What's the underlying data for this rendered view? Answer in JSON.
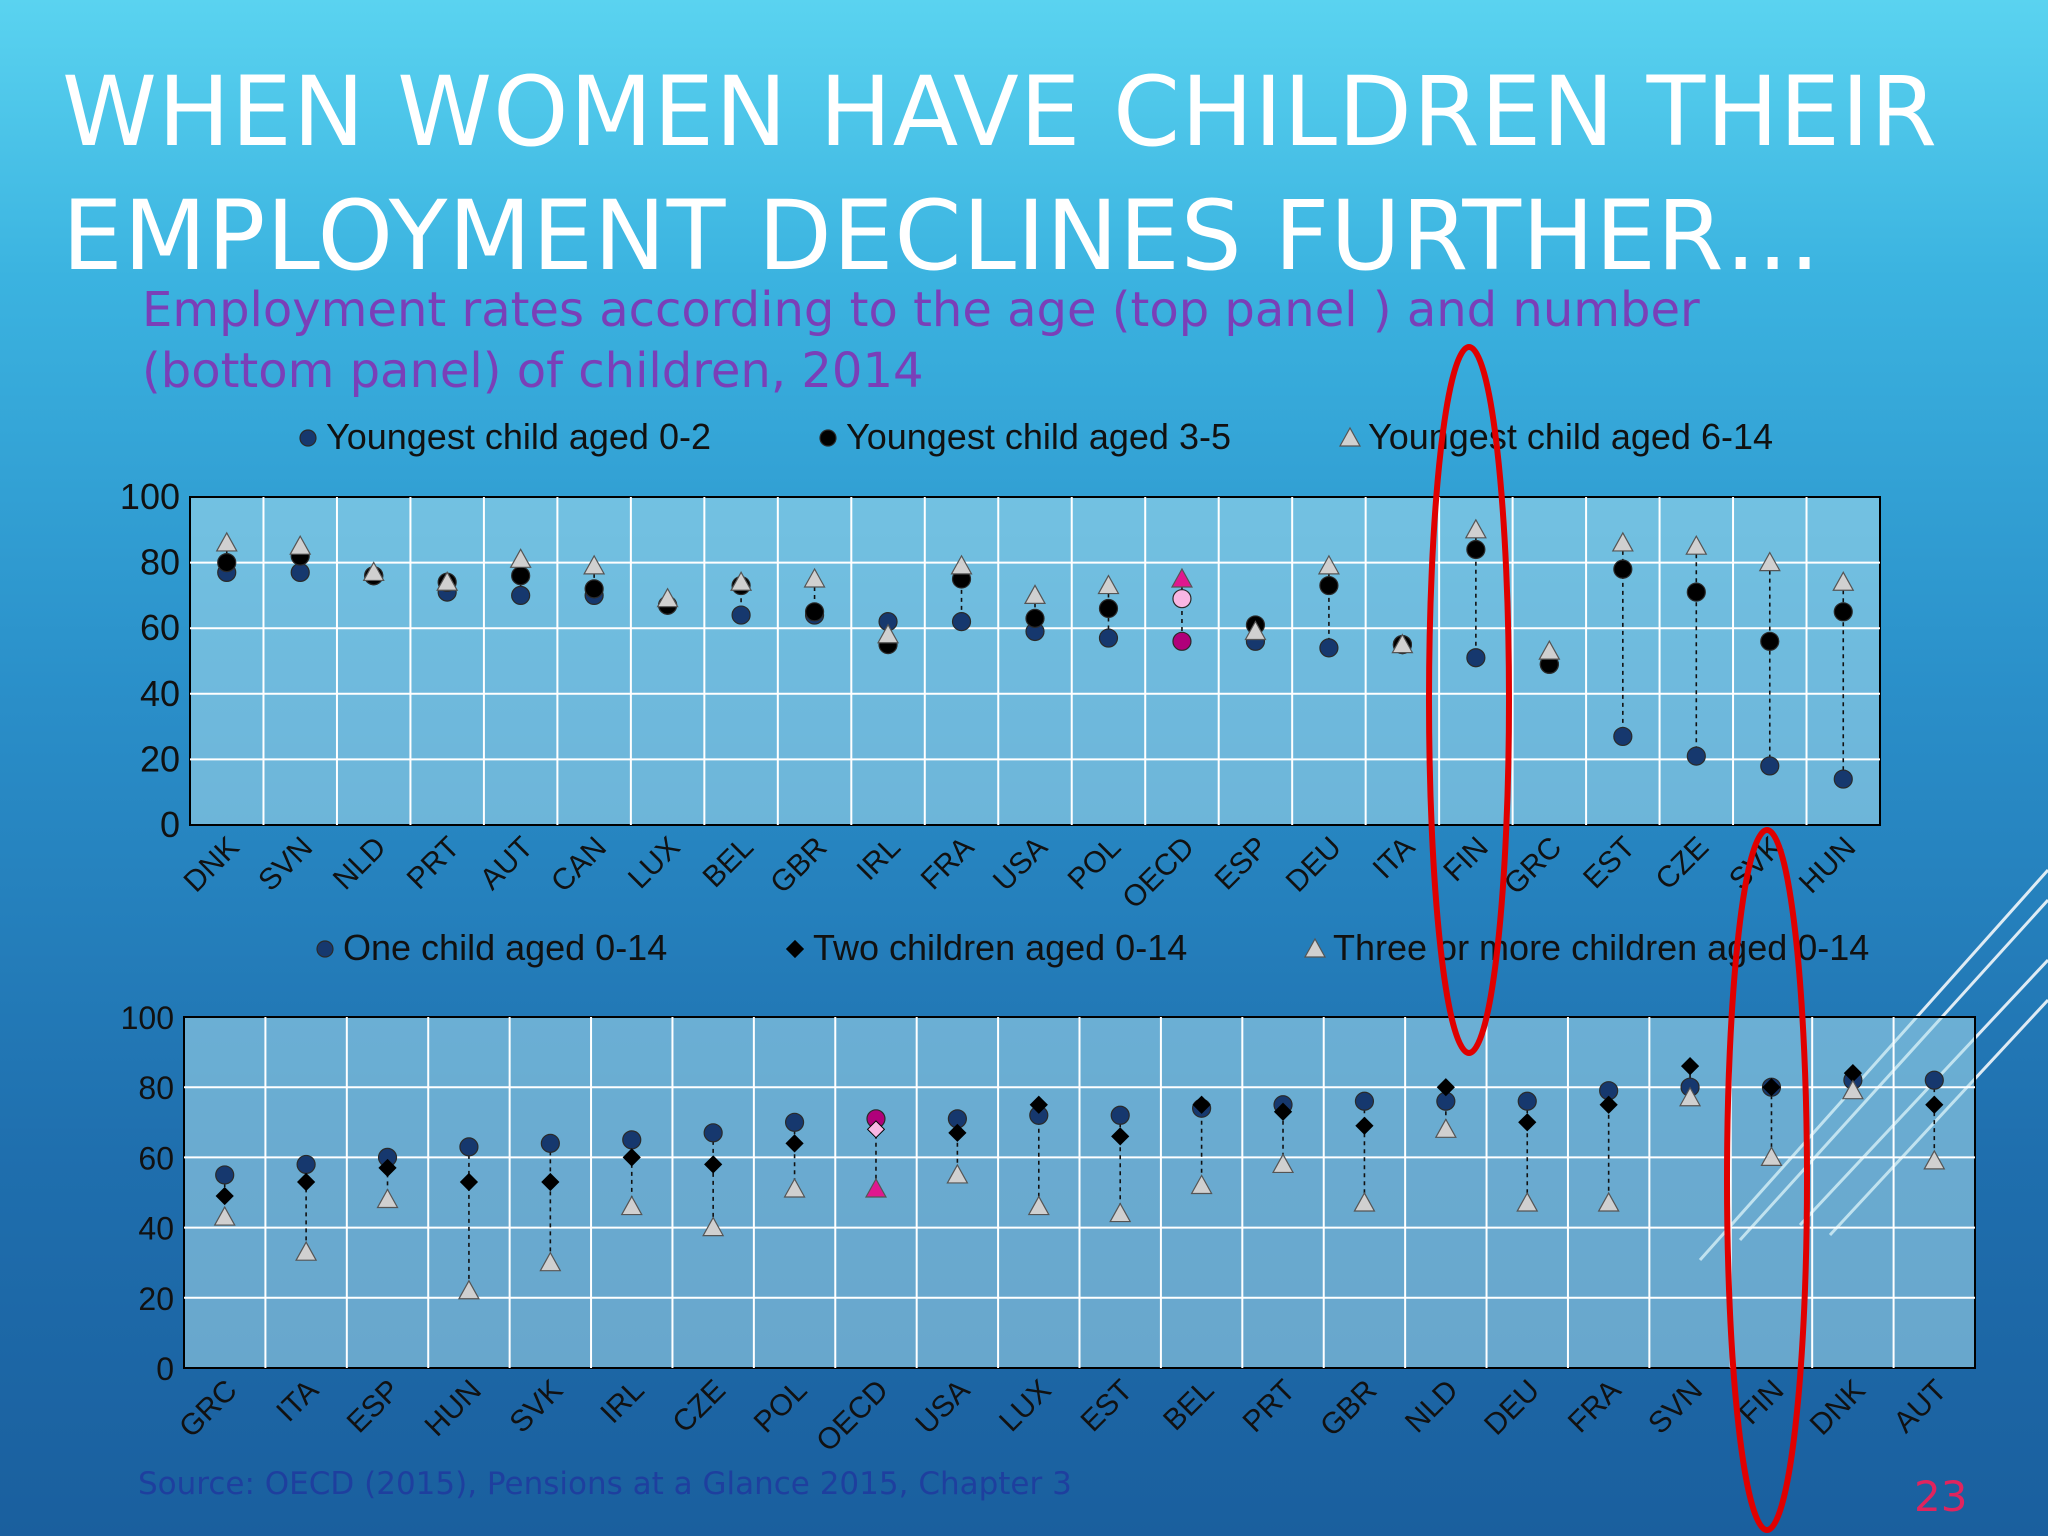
{
  "slide": {
    "title_line1": "WHEN WOMEN HAVE CHILDREN THEIR",
    "title_line2": "EMPLOYMENT DECLINES FURTHER…",
    "subtitle_line1": "Employment rates according to the age (top panel ) and number",
    "subtitle_line2": "(bottom panel) of children, 2014",
    "source": "Source: OECD (2015), Pensions at a Glance 2015, Chapter 3",
    "page_number": "23"
  },
  "colors": {
    "navy_marker": "#16386e",
    "black_marker": "#000000",
    "grey_marker": "#d0d0d0",
    "oecd_magenta": "#b0007a",
    "oecd_pink": "#f9b6e3",
    "oecd_pink_triangle": "#e0188f",
    "highlight_ellipse": "#e00000"
  },
  "chart_data": [
    {
      "type": "scatter",
      "ylim": [
        0,
        100
      ],
      "yticks": [
        0,
        20,
        40,
        60,
        80,
        100
      ],
      "grid": true,
      "legend_placement": "top",
      "categories": [
        "DNK",
        "SVN",
        "NLD",
        "PRT",
        "AUT",
        "CAN",
        "LUX",
        "BEL",
        "GBR",
        "IRL",
        "FRA",
        "USA",
        "POL",
        "OECD",
        "ESP",
        "DEU",
        "ITA",
        "FIN",
        "GRC",
        "EST",
        "CZE",
        "SVK",
        "HUN"
      ],
      "series": [
        {
          "name": "Youngest child aged 0-2",
          "marker": "circle",
          "values": [
            77,
            77,
            76,
            71,
            70,
            70,
            67,
            64,
            64,
            62,
            62,
            59,
            57,
            56,
            56,
            54,
            55,
            51,
            49,
            27,
            21,
            18,
            14
          ]
        },
        {
          "name": "Youngest child aged 3-5",
          "marker": "circle",
          "values": [
            80,
            82,
            76,
            74,
            76,
            72,
            67,
            73,
            65,
            55,
            75,
            63,
            66,
            69,
            61,
            73,
            55,
            84,
            49,
            78,
            71,
            56,
            65
          ]
        },
        {
          "name": "Youngest child aged 6-14",
          "marker": "triangle",
          "values": [
            86,
            85,
            77,
            74,
            81,
            79,
            69,
            74,
            75,
            58,
            79,
            70,
            73,
            75,
            59,
            79,
            55,
            90,
            53,
            86,
            85,
            80,
            74
          ]
        }
      ],
      "highlighted_category": "FIN"
    },
    {
      "type": "scatter",
      "ylim": [
        0,
        100
      ],
      "yticks": [
        0,
        20,
        40,
        60,
        80,
        100
      ],
      "grid": true,
      "legend_placement": "top",
      "categories": [
        "GRC",
        "ITA",
        "ESP",
        "HUN",
        "SVK",
        "IRL",
        "CZE",
        "POL",
        "OECD",
        "USA",
        "LUX",
        "EST",
        "BEL",
        "PRT",
        "GBR",
        "NLD",
        "DEU",
        "FRA",
        "SVN",
        "FIN",
        "DNK",
        "AUT"
      ],
      "series": [
        {
          "name": "One child aged 0-14",
          "marker": "circle",
          "values": [
            55,
            58,
            60,
            63,
            64,
            65,
            67,
            70,
            71,
            71,
            72,
            72,
            74,
            75,
            76,
            76,
            76,
            79,
            80,
            80,
            82,
            82
          ]
        },
        {
          "name": "Two children aged 0-14",
          "marker": "diamond",
          "values": [
            49,
            53,
            57,
            53,
            53,
            60,
            58,
            64,
            68,
            67,
            75,
            66,
            75,
            73,
            69,
            80,
            70,
            75,
            86,
            80,
            84,
            75
          ]
        },
        {
          "name": "Three or more children aged 0-14",
          "marker": "triangle",
          "values": [
            43,
            33,
            48,
            22,
            30,
            46,
            40,
            51,
            51,
            55,
            46,
            44,
            52,
            58,
            47,
            68,
            47,
            47,
            77,
            60,
            79,
            59
          ]
        }
      ],
      "highlighted_category": "FIN"
    }
  ]
}
